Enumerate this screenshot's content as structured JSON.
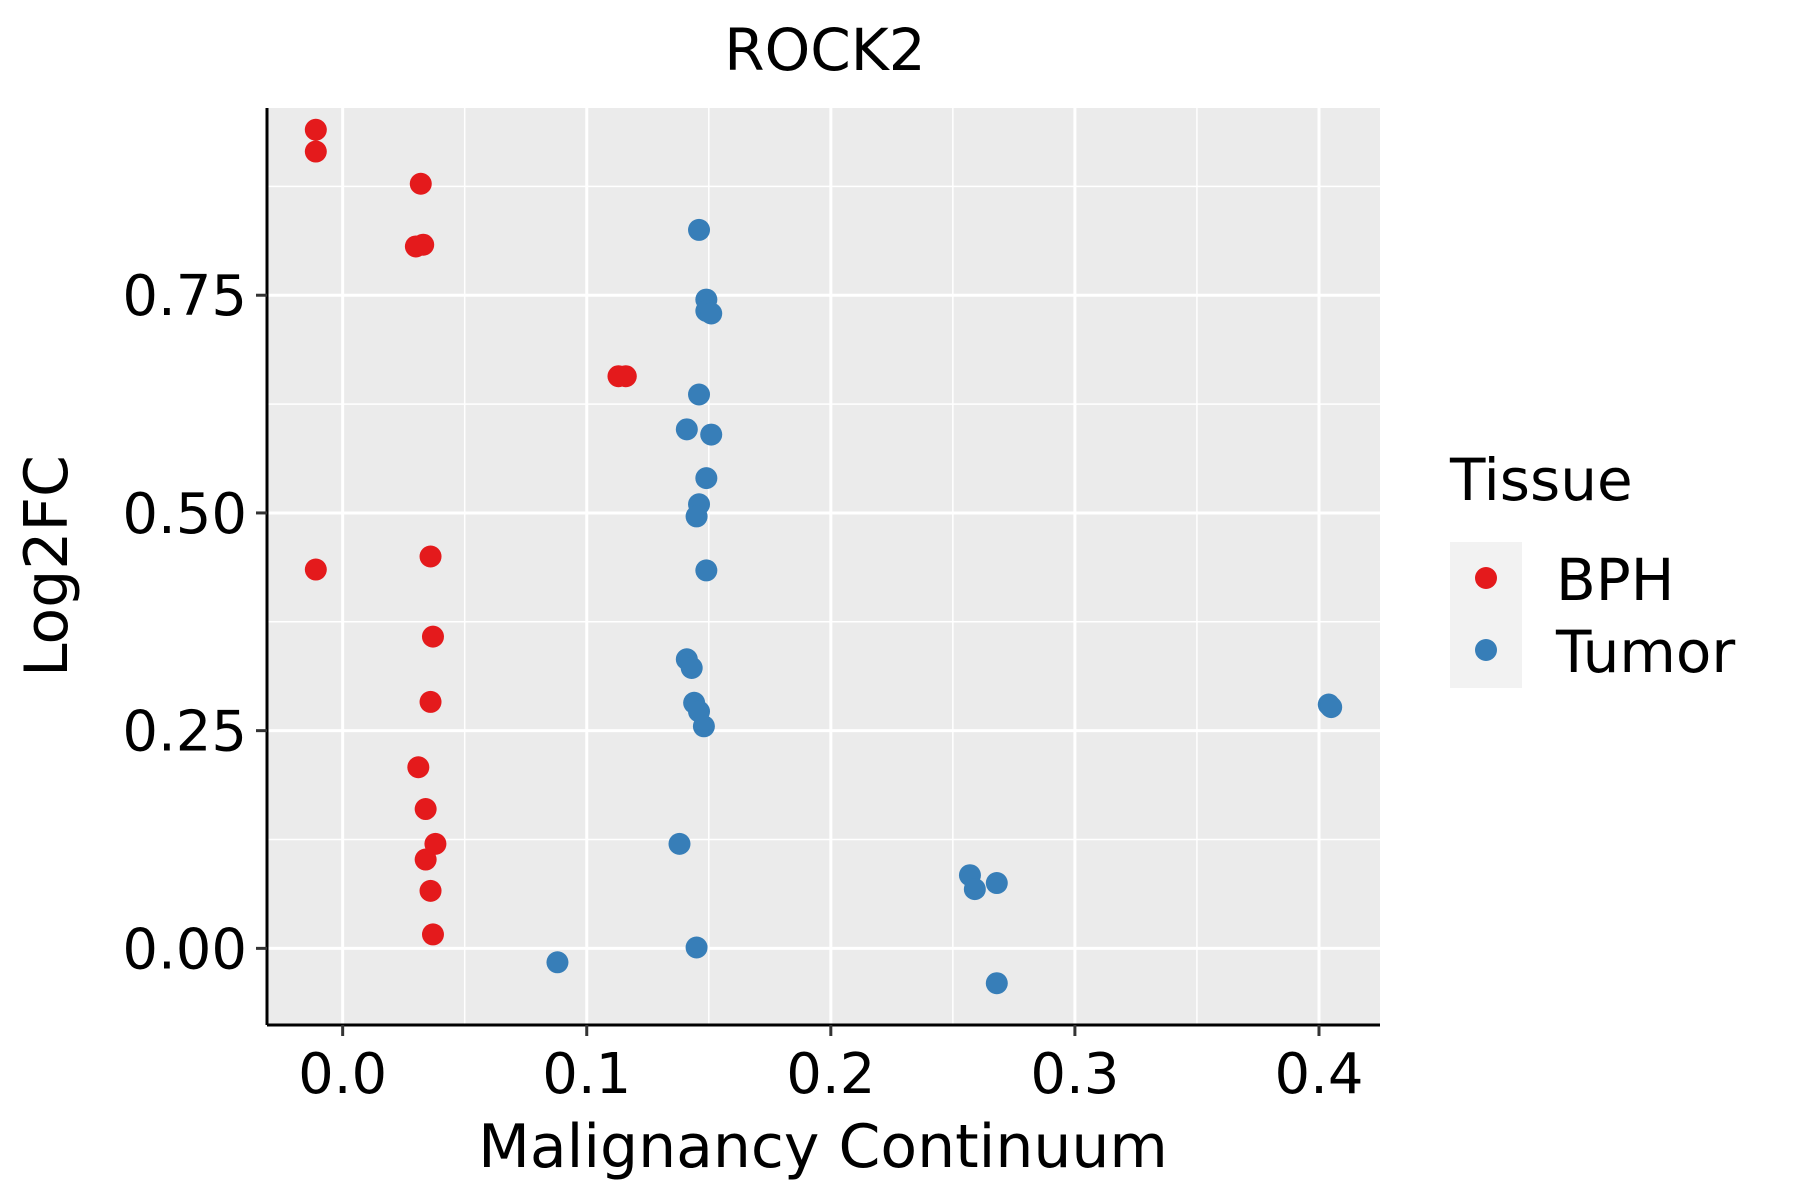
{
  "chart_data": {
    "type": "scatter",
    "title": "ROCK2",
    "xlabel": "Malignancy Continuum",
    "ylabel": "Log2FC",
    "xlim": [
      -0.031,
      0.425
    ],
    "ylim": [
      -0.088,
      0.965
    ],
    "x_ticks": [
      0.0,
      0.1,
      0.2,
      0.3,
      0.4
    ],
    "x_tick_labels": [
      "0.0",
      "0.1",
      "0.2",
      "0.3",
      "0.4"
    ],
    "y_ticks": [
      0.0,
      0.25,
      0.5,
      0.75
    ],
    "y_tick_labels": [
      "0.00",
      "0.25",
      "0.50",
      "0.75"
    ],
    "grid": true,
    "legend": {
      "title": "Tissue",
      "position": "right",
      "entries": [
        {
          "name": "BPH",
          "color": "#E41A1C"
        },
        {
          "name": "Tumor",
          "color": "#377EB8"
        }
      ]
    },
    "series": [
      {
        "name": "BPH",
        "color": "#E41A1C",
        "points": [
          [
            -0.011,
            0.94
          ],
          [
            -0.011,
            0.915
          ],
          [
            0.032,
            0.878
          ],
          [
            0.03,
            0.806
          ],
          [
            0.033,
            0.808
          ],
          [
            0.113,
            0.657
          ],
          [
            0.116,
            0.657
          ],
          [
            -0.011,
            0.435
          ],
          [
            0.036,
            0.45
          ],
          [
            0.037,
            0.358
          ],
          [
            0.036,
            0.283
          ],
          [
            0.031,
            0.208
          ],
          [
            0.034,
            0.16
          ],
          [
            0.038,
            0.12
          ],
          [
            0.034,
            0.102
          ],
          [
            0.036,
            0.066
          ],
          [
            0.037,
            0.016
          ]
        ]
      },
      {
        "name": "Tumor",
        "color": "#377EB8",
        "points": [
          [
            0.146,
            0.825
          ],
          [
            0.149,
            0.745
          ],
          [
            0.149,
            0.732
          ],
          [
            0.151,
            0.729
          ],
          [
            0.146,
            0.636
          ],
          [
            0.141,
            0.596
          ],
          [
            0.151,
            0.59
          ],
          [
            0.149,
            0.54
          ],
          [
            0.146,
            0.51
          ],
          [
            0.145,
            0.496
          ],
          [
            0.149,
            0.434
          ],
          [
            0.141,
            0.332
          ],
          [
            0.143,
            0.322
          ],
          [
            0.144,
            0.282
          ],
          [
            0.146,
            0.272
          ],
          [
            0.148,
            0.255
          ],
          [
            0.138,
            0.12
          ],
          [
            0.145,
            0.001
          ],
          [
            0.088,
            -0.016
          ],
          [
            0.257,
            0.084
          ],
          [
            0.259,
            0.068
          ],
          [
            0.268,
            0.075
          ],
          [
            0.268,
            -0.04
          ],
          [
            0.404,
            0.28
          ],
          [
            0.405,
            0.277
          ]
        ]
      }
    ]
  }
}
